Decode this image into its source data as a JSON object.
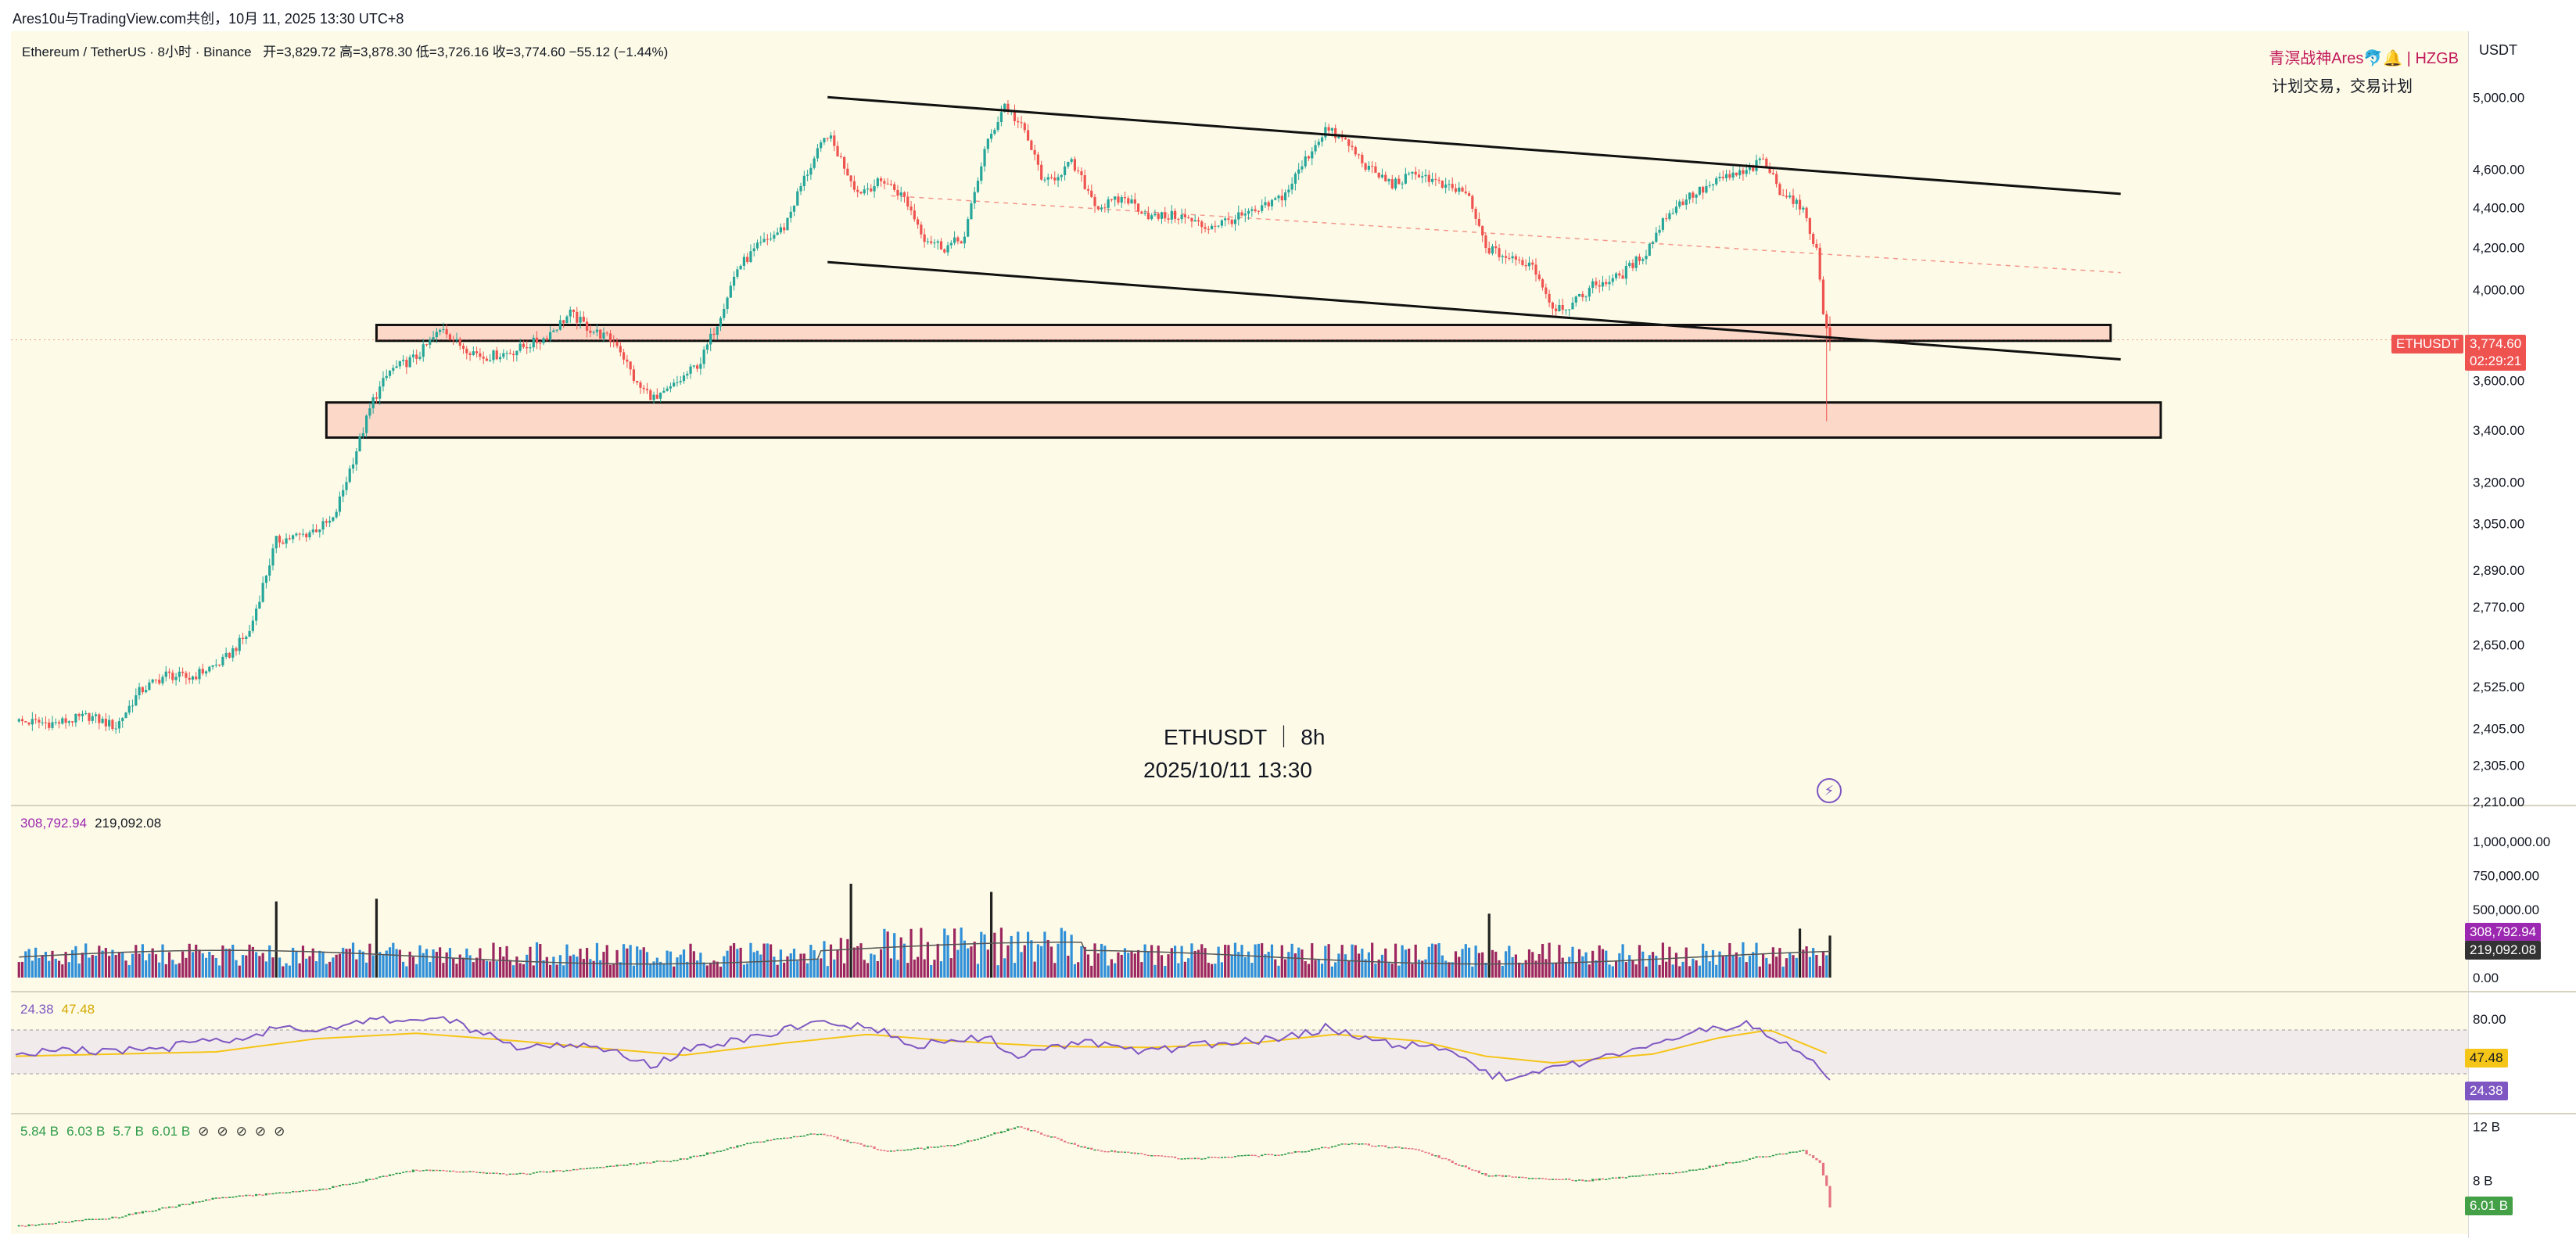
{
  "header": {
    "share_text": "Ares10u与TradingView.com共创，10月 11, 2025 13:30 UTC+8"
  },
  "legend": {
    "symbol": "Ethereum / TetherUS · 8小时 · Binance",
    "ohlc": "开=3,829.72  高=3,878.30  低=3,726.16  收=3,774.60  −55.12 (−1.44%)"
  },
  "brand": {
    "name": "青溟战神Ares🐬🔔 | HZGB",
    "tagline": "计划交易，交易计划"
  },
  "watermark": {
    "line1": "ETHUSDT ｜ 8h",
    "line2": "2025/10/11 13:30"
  },
  "scale": {
    "currency": "USDT",
    "symbol_tag": "ETHUSDT",
    "last_price": "3,774.60",
    "countdown": "02:29:21"
  },
  "colors": {
    "background": "#fdfbe7",
    "up": "#26a69a",
    "down": "#ef5350",
    "zone_fill": "#fbd8c8",
    "rsi_line": "#7e57c2",
    "rsi_ma": "#f5c518",
    "volume_ma": "#555555"
  },
  "chart_data": [
    {
      "type": "candlestick",
      "title": "Ethereum / TetherUS · 8小时 · Binance",
      "scale": "log",
      "y_ticks": [
        "5,000.00",
        "4,600.00",
        "4,400.00",
        "4,200.00",
        "4,000.00",
        "3,600.00",
        "3,400.00",
        "3,200.00",
        "3,050.00",
        "2,890.00",
        "2,770.00",
        "2,650.00",
        "2,525.00",
        "2,405.00",
        "2,305.00",
        "2,210.00"
      ],
      "y_tick_values": [
        5000,
        4600,
        4400,
        4200,
        4000,
        3600,
        3400,
        3200,
        3050,
        2890,
        2770,
        2650,
        2525,
        2405,
        2305,
        2210
      ],
      "ylim": [
        2200,
        5300
      ],
      "last": {
        "open": 3829.72,
        "high": 3878.3,
        "low": 3726.16,
        "close": 3774.6,
        "change": -55.12,
        "change_pct": -1.44
      },
      "close_path": [
        [
          0,
          2425
        ],
        [
          12,
          2420
        ],
        [
          22,
          2440
        ],
        [
          30,
          2410
        ],
        [
          37,
          2510
        ],
        [
          45,
          2560
        ],
        [
          52,
          2550
        ],
        [
          62,
          2600
        ],
        [
          70,
          2690
        ],
        [
          78,
          2990
        ],
        [
          86,
          3010
        ],
        [
          95,
          3060
        ],
        [
          103,
          3360
        ],
        [
          107,
          3520
        ],
        [
          112,
          3640
        ],
        [
          120,
          3700
        ],
        [
          128,
          3830
        ],
        [
          132,
          3760
        ],
        [
          140,
          3700
        ],
        [
          148,
          3720
        ],
        [
          158,
          3780
        ],
        [
          166,
          3890
        ],
        [
          172,
          3820
        ],
        [
          180,
          3760
        ],
        [
          186,
          3580
        ],
        [
          192,
          3520
        ],
        [
          198,
          3590
        ],
        [
          205,
          3680
        ],
        [
          210,
          3850
        ],
        [
          216,
          4100
        ],
        [
          222,
          4200
        ],
        [
          230,
          4300
        ],
        [
          236,
          4550
        ],
        [
          243,
          4790
        ],
        [
          252,
          4480
        ],
        [
          260,
          4540
        ],
        [
          266,
          4450
        ],
        [
          272,
          4250
        ],
        [
          278,
          4200
        ],
        [
          284,
          4250
        ],
        [
          290,
          4700
        ],
        [
          296,
          4960
        ],
        [
          302,
          4800
        ],
        [
          308,
          4520
        ],
        [
          316,
          4630
        ],
        [
          324,
          4400
        ],
        [
          332,
          4450
        ],
        [
          340,
          4350
        ],
        [
          348,
          4360
        ],
        [
          356,
          4300
        ],
        [
          364,
          4340
        ],
        [
          372,
          4380
        ],
        [
          380,
          4470
        ],
        [
          386,
          4650
        ],
        [
          392,
          4820
        ],
        [
          398,
          4750
        ],
        [
          405,
          4600
        ],
        [
          412,
          4520
        ],
        [
          420,
          4580
        ],
        [
          428,
          4500
        ],
        [
          434,
          4480
        ],
        [
          440,
          4200
        ],
        [
          448,
          4140
        ],
        [
          454,
          4120
        ],
        [
          460,
          3920
        ],
        [
          466,
          3930
        ],
        [
          472,
          4020
        ],
        [
          480,
          4060
        ],
        [
          488,
          4180
        ],
        [
          494,
          4360
        ],
        [
          500,
          4450
        ],
        [
          506,
          4500
        ],
        [
          512,
          4560
        ],
        [
          518,
          4580
        ],
        [
          523,
          4650
        ],
        [
          528,
          4490
        ],
        [
          532,
          4440
        ],
        [
          536,
          4350
        ],
        [
          539,
          4180
        ],
        [
          541,
          3900
        ],
        [
          543,
          3775
        ]
      ],
      "channel_lines": [
        {
          "from": [
            243,
            5000
          ],
          "to": [
            630,
            4470
          ]
        },
        {
          "from": [
            243,
            4130
          ],
          "to": [
            630,
            3690
          ]
        }
      ],
      "mid_line": {
        "from": [
          262,
          4460
        ],
        "to": [
          630,
          4080
        ],
        "style": "dashed-red"
      },
      "zones": [
        {
          "x0": 108,
          "x1": 627,
          "y0": 3770,
          "y1": 3840
        },
        {
          "x0": 93,
          "x1": 642,
          "y0": 3370,
          "y1": 3510
        }
      ]
    },
    {
      "type": "bar",
      "title": "Volume",
      "values_shown": [
        "308,792.94",
        "219,092.08"
      ],
      "y_ticks": [
        "1,000,000.00",
        "750,000.00",
        "500,000.00",
        "0.00"
      ],
      "y_tick_values": [
        1000000,
        750000,
        500000,
        0
      ],
      "ylim": [
        0,
        1150000
      ],
      "spikes": [
        [
          78,
          560000
        ],
        [
          108,
          580000
        ],
        [
          250,
          690000
        ],
        [
          292,
          630000
        ],
        [
          441,
          470000
        ],
        [
          534,
          360000
        ],
        [
          543,
          1080000
        ]
      ],
      "last_volume": 308792.94,
      "ma": 219092.08
    },
    {
      "type": "line",
      "title": "RSI",
      "values_shown": [
        "24.38",
        "47.48"
      ],
      "y_ticks": [
        "80.00"
      ],
      "y_tick_values": [
        80
      ],
      "ylim": [
        0,
        100
      ],
      "bands": [
        70,
        30
      ],
      "rsi_path": [
        [
          0,
          50
        ],
        [
          40,
          52
        ],
        [
          70,
          64
        ],
        [
          80,
          75
        ],
        [
          90,
          68
        ],
        [
          108,
          80
        ],
        [
          130,
          78
        ],
        [
          150,
          55
        ],
        [
          170,
          58
        ],
        [
          190,
          38
        ],
        [
          200,
          50
        ],
        [
          220,
          64
        ],
        [
          240,
          75
        ],
        [
          255,
          75
        ],
        [
          270,
          56
        ],
        [
          290,
          64
        ],
        [
          300,
          48
        ],
        [
          320,
          60
        ],
        [
          340,
          50
        ],
        [
          360,
          58
        ],
        [
          380,
          62
        ],
        [
          392,
          72
        ],
        [
          410,
          58
        ],
        [
          430,
          52
        ],
        [
          440,
          30
        ],
        [
          450,
          25
        ],
        [
          458,
          35
        ],
        [
          470,
          40
        ],
        [
          490,
          58
        ],
        [
          500,
          68
        ],
        [
          510,
          72
        ],
        [
          520,
          75
        ],
        [
          530,
          55
        ],
        [
          538,
          45
        ],
        [
          543,
          24.38
        ]
      ],
      "ma_path": [
        [
          0,
          46
        ],
        [
          60,
          50
        ],
        [
          90,
          62
        ],
        [
          120,
          67
        ],
        [
          150,
          60
        ],
        [
          180,
          52
        ],
        [
          200,
          47
        ],
        [
          230,
          58
        ],
        [
          255,
          66
        ],
        [
          280,
          60
        ],
        [
          310,
          55
        ],
        [
          340,
          54
        ],
        [
          370,
          58
        ],
        [
          395,
          66
        ],
        [
          420,
          60
        ],
        [
          440,
          46
        ],
        [
          460,
          40
        ],
        [
          490,
          48
        ],
        [
          510,
          63
        ],
        [
          525,
          70
        ],
        [
          543,
          47.48
        ]
      ],
      "last_rsi": 24.38,
      "last_ma": 47.48
    },
    {
      "type": "candlestick",
      "title": "Open Interest",
      "values_shown": [
        "5.84 B",
        "6.03 B",
        "5.7 B",
        "6.01 B"
      ],
      "y_ticks": [
        "12 B",
        "8 B"
      ],
      "y_tick_values": [
        12,
        8
      ],
      "ylim": [
        4.5,
        12.5
      ],
      "oi_path": [
        [
          0,
          4.6
        ],
        [
          30,
          5.3
        ],
        [
          60,
          6.7
        ],
        [
          90,
          7.3
        ],
        [
          120,
          8.8
        ],
        [
          150,
          8.5
        ],
        [
          170,
          8.9
        ],
        [
          200,
          9.6
        ],
        [
          220,
          10.8
        ],
        [
          240,
          11.5
        ],
        [
          260,
          10.2
        ],
        [
          280,
          10.6
        ],
        [
          300,
          12.0
        ],
        [
          320,
          10.4
        ],
        [
          350,
          9.6
        ],
        [
          380,
          10.0
        ],
        [
          400,
          10.8
        ],
        [
          420,
          10.3
        ],
        [
          440,
          8.4
        ],
        [
          470,
          8.0
        ],
        [
          500,
          8.7
        ],
        [
          520,
          9.7
        ],
        [
          535,
          10.2
        ],
        [
          540,
          9.3
        ],
        [
          542,
          7.6
        ],
        [
          543,
          6.01
        ]
      ],
      "last_value": 6.01
    }
  ]
}
